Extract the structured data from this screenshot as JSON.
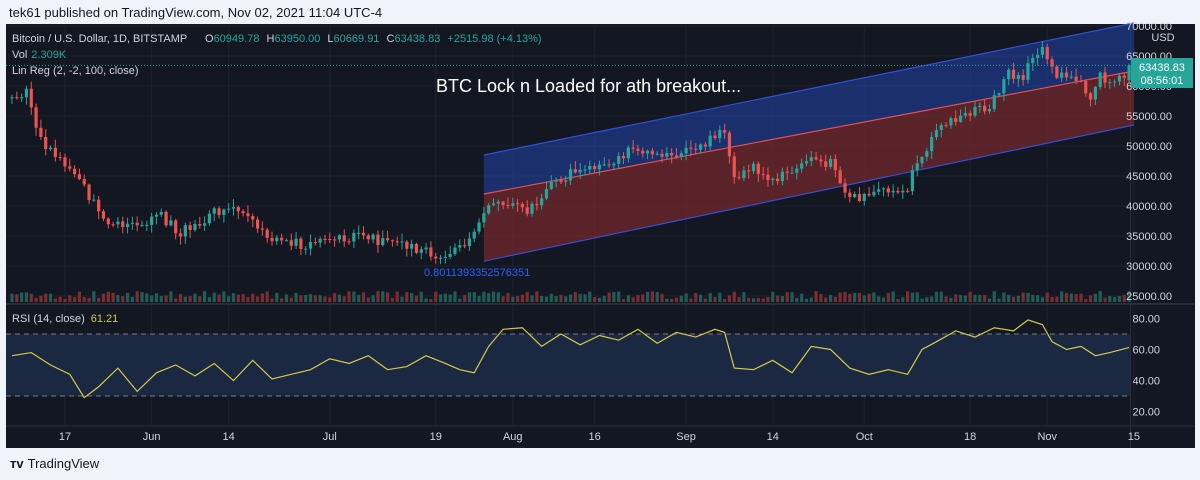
{
  "header": {
    "publisher_line": "tek61 published on TradingView.com, Nov 02, 2021 11:04 UTC-4"
  },
  "legend": {
    "symbol": "Bitcoin / U.S. Dollar, 1D, BITSTAMP",
    "o_label": "O",
    "o_value": "60949.78",
    "h_label": "H",
    "h_value": "63950.00",
    "l_label": "L",
    "l_value": "60669.91",
    "c_label": "C",
    "c_value": "63438.83",
    "change": "+2515.98 (+4.13%)",
    "vol_label": "Vol",
    "vol_value": "2.309K",
    "linreg_label": "Lin Reg (2, -2, 100, close)"
  },
  "annotation": {
    "title": "BTC Lock n Loaded for ath breakout...",
    "linreg_value": "0.8011393352576351"
  },
  "price_badge": {
    "price": "63438.83",
    "countdown": "08:56:01"
  },
  "rsi": {
    "label": "RSI (14, close)",
    "value": "61.21"
  },
  "bottom": {
    "brand": "TradingView",
    "brand_icon": "tradingview-logo-icon"
  },
  "colors": {
    "up": "#26a69a",
    "down": "#ef5350",
    "background": "#131722",
    "channel_upper_fill": "#2244aa",
    "channel_lower_fill": "#8b2a2e",
    "rsi_line": "#d6c84a",
    "price_line": "#26a69a"
  },
  "chart_data": [
    {
      "type": "candlestick",
      "title": "",
      "y_axis_ticks": [
        "70000.00",
        "65000.00",
        "60000.00",
        "55000.00",
        "50000.00",
        "45000.00",
        "40000.00",
        "35000.00",
        "30000.00",
        "25000.00"
      ],
      "y_axis_unit": "USD",
      "ylim": [
        24000,
        70000
      ],
      "x_axis_ticks": [
        "17",
        "Jun",
        "14",
        "Jul",
        "19",
        "Aug",
        "16",
        "Sep",
        "14",
        "Oct",
        "18",
        "Nov",
        "15"
      ],
      "anchors": [
        {
          "bar": 0,
          "price": 58000
        },
        {
          "bar": 3,
          "price": 59000
        },
        {
          "bar": 6,
          "price": 51000
        },
        {
          "bar": 10,
          "price": 48000
        },
        {
          "bar": 15,
          "price": 43000
        },
        {
          "bar": 19,
          "price": 38000
        },
        {
          "bar": 22,
          "price": 37500
        },
        {
          "bar": 26,
          "price": 36500
        },
        {
          "bar": 30,
          "price": 39000
        },
        {
          "bar": 35,
          "price": 35500
        },
        {
          "bar": 40,
          "price": 38000
        },
        {
          "bar": 46,
          "price": 40500
        },
        {
          "bar": 51,
          "price": 36000
        },
        {
          "bar": 56,
          "price": 34000
        },
        {
          "bar": 63,
          "price": 33500
        },
        {
          "bar": 68,
          "price": 35000
        },
        {
          "bar": 74,
          "price": 34500
        },
        {
          "bar": 80,
          "price": 33500
        },
        {
          "bar": 86,
          "price": 32500
        },
        {
          "bar": 90,
          "price": 31500
        },
        {
          "bar": 94,
          "price": 33000
        },
        {
          "bar": 97,
          "price": 38000
        },
        {
          "bar": 100,
          "price": 40500
        },
        {
          "bar": 104,
          "price": 40000
        },
        {
          "bar": 107,
          "price": 39000
        },
        {
          "bar": 110,
          "price": 42000
        },
        {
          "bar": 113,
          "price": 44000
        },
        {
          "bar": 118,
          "price": 46500
        },
        {
          "bar": 124,
          "price": 47500
        },
        {
          "bar": 128,
          "price": 49000
        },
        {
          "bar": 134,
          "price": 48000
        },
        {
          "bar": 140,
          "price": 49500
        },
        {
          "bar": 145,
          "price": 51000
        },
        {
          "bar": 148,
          "price": 52500
        },
        {
          "bar": 150,
          "price": 45000
        },
        {
          "bar": 154,
          "price": 46500
        },
        {
          "bar": 158,
          "price": 44500
        },
        {
          "bar": 162,
          "price": 46000
        },
        {
          "bar": 166,
          "price": 48000
        },
        {
          "bar": 170,
          "price": 47000
        },
        {
          "bar": 173,
          "price": 42000
        },
        {
          "bar": 176,
          "price": 41500
        },
        {
          "bar": 180,
          "price": 43500
        },
        {
          "bar": 183,
          "price": 42000
        },
        {
          "bar": 186,
          "price": 43000
        },
        {
          "bar": 188,
          "price": 48000
        },
        {
          "bar": 191,
          "price": 51000
        },
        {
          "bar": 195,
          "price": 54500
        },
        {
          "bar": 199,
          "price": 55500
        },
        {
          "bar": 203,
          "price": 57000
        },
        {
          "bar": 207,
          "price": 62000
        },
        {
          "bar": 210,
          "price": 61500
        },
        {
          "bar": 212,
          "price": 65000
        },
        {
          "bar": 214,
          "price": 66000
        },
        {
          "bar": 217,
          "price": 61000
        },
        {
          "bar": 220,
          "price": 62000
        },
        {
          "bar": 222,
          "price": 60500
        },
        {
          "bar": 224,
          "price": 58500
        },
        {
          "bar": 226,
          "price": 61500
        },
        {
          "bar": 229,
          "price": 61000
        },
        {
          "bar": 231,
          "price": 60949.78
        },
        {
          "bar": 232,
          "price": 63438.83
        }
      ],
      "bar_count": 233,
      "channel": {
        "start_bar": 98,
        "end_bar": 233,
        "upper": [
          48500,
          70500
        ],
        "middle": [
          42000,
          62500
        ],
        "lower": [
          30800,
          53500
        ]
      },
      "current_price": 63438.83
    },
    {
      "type": "line",
      "title": "",
      "series_label": "RSI (14, close)",
      "y_axis_ticks": [
        "80.00",
        "60.00",
        "40.00",
        "20.00"
      ],
      "ylim": [
        12,
        88
      ],
      "bands": [
        70,
        30
      ],
      "x": [
        0,
        4,
        8,
        12,
        15,
        18,
        22,
        26,
        30,
        34,
        38,
        42,
        46,
        50,
        54,
        58,
        62,
        66,
        70,
        74,
        78,
        82,
        86,
        90,
        93,
        96,
        99,
        102,
        106,
        110,
        114,
        118,
        122,
        126,
        130,
        134,
        138,
        142,
        146,
        148,
        150,
        154,
        158,
        162,
        166,
        170,
        174,
        178,
        182,
        186,
        189,
        192,
        196,
        200,
        204,
        208,
        211,
        214,
        216,
        219,
        222,
        225,
        228,
        232
      ],
      "values": [
        56,
        58,
        50,
        44,
        29,
        36,
        48,
        33,
        45,
        50,
        43,
        51,
        40,
        53,
        41,
        44,
        47,
        54,
        51,
        56,
        47,
        49,
        56,
        51,
        47,
        45,
        62,
        73,
        74,
        62,
        70,
        63,
        69,
        66,
        73,
        64,
        71,
        68,
        73,
        71,
        48,
        47,
        53,
        45,
        62,
        60,
        48,
        44,
        47,
        44,
        60,
        65,
        72,
        68,
        74,
        72,
        79,
        76,
        65,
        60,
        62,
        56,
        58,
        61.21
      ]
    }
  ]
}
